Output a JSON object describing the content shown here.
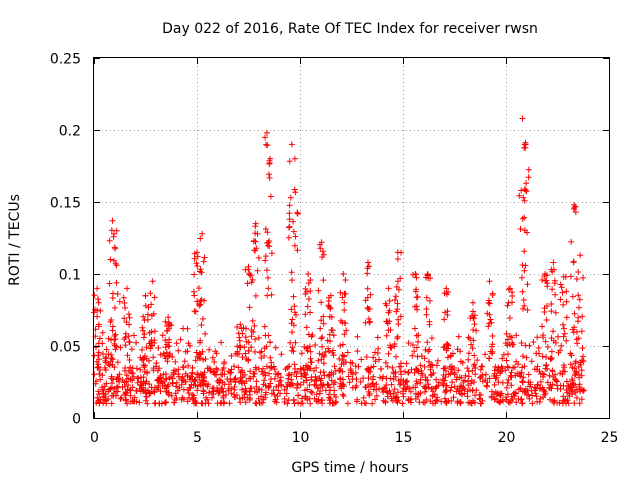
{
  "chart_data": {
    "type": "scatter",
    "title": "Day 022 of 2016, Rate Of TEC Index for receiver rwsn",
    "xlabel": "GPS time / hours",
    "ylabel": "ROTI / TECUs",
    "xlim": [
      0,
      25
    ],
    "ylim": [
      0,
      0.25
    ],
    "xticks": [
      0,
      5,
      10,
      15,
      20,
      25
    ],
    "xtick_labels": [
      "0",
      "5",
      "10",
      "15",
      "20",
      "25"
    ],
    "yticks": [
      0,
      0.05,
      0.1,
      0.15,
      0.2,
      0.25
    ],
    "ytick_labels": [
      "0",
      "0.05",
      "0.1",
      "0.15",
      "0.2",
      "0.25"
    ],
    "grid": true,
    "marker": "+",
    "color": "#ff0000",
    "data_range": [
      0,
      23.8
    ],
    "baseline": {
      "min": 0.01,
      "median": 0.03,
      "typical_max": 0.065
    },
    "spikes": [
      {
        "x": 0.15,
        "peak": 0.09
      },
      {
        "x": 0.9,
        "peak": 0.137
      },
      {
        "x": 1.1,
        "peak": 0.13
      },
      {
        "x": 1.6,
        "peak": 0.09
      },
      {
        "x": 2.5,
        "peak": 0.085
      },
      {
        "x": 2.85,
        "peak": 0.095
      },
      {
        "x": 3.6,
        "peak": 0.07
      },
      {
        "x": 5.0,
        "peak": 0.115
      },
      {
        "x": 5.25,
        "peak": 0.128
      },
      {
        "x": 7.1,
        "peak": 0.065
      },
      {
        "x": 7.5,
        "peak": 0.105
      },
      {
        "x": 7.85,
        "peak": 0.135
      },
      {
        "x": 8.4,
        "peak": 0.198
      },
      {
        "x": 8.55,
        "peak": 0.18
      },
      {
        "x": 9.6,
        "peak": 0.19
      },
      {
        "x": 9.75,
        "peak": 0.18
      },
      {
        "x": 10.4,
        "peak": 0.1
      },
      {
        "x": 11.05,
        "peak": 0.122
      },
      {
        "x": 11.5,
        "peak": 0.085
      },
      {
        "x": 12.1,
        "peak": 0.1
      },
      {
        "x": 13.3,
        "peak": 0.108
      },
      {
        "x": 14.3,
        "peak": 0.09
      },
      {
        "x": 14.75,
        "peak": 0.115
      },
      {
        "x": 15.6,
        "peak": 0.1
      },
      {
        "x": 16.2,
        "peak": 0.1
      },
      {
        "x": 17.1,
        "peak": 0.09
      },
      {
        "x": 18.4,
        "peak": 0.08
      },
      {
        "x": 19.2,
        "peak": 0.095
      },
      {
        "x": 20.2,
        "peak": 0.09
      },
      {
        "x": 20.8,
        "peak": 0.208
      },
      {
        "x": 20.95,
        "peak": 0.19
      },
      {
        "x": 21.9,
        "peak": 0.1
      },
      {
        "x": 22.3,
        "peak": 0.108
      },
      {
        "x": 22.8,
        "peak": 0.098
      },
      {
        "x": 23.3,
        "peak": 0.148
      },
      {
        "x": 23.6,
        "peak": 0.113
      }
    ]
  }
}
